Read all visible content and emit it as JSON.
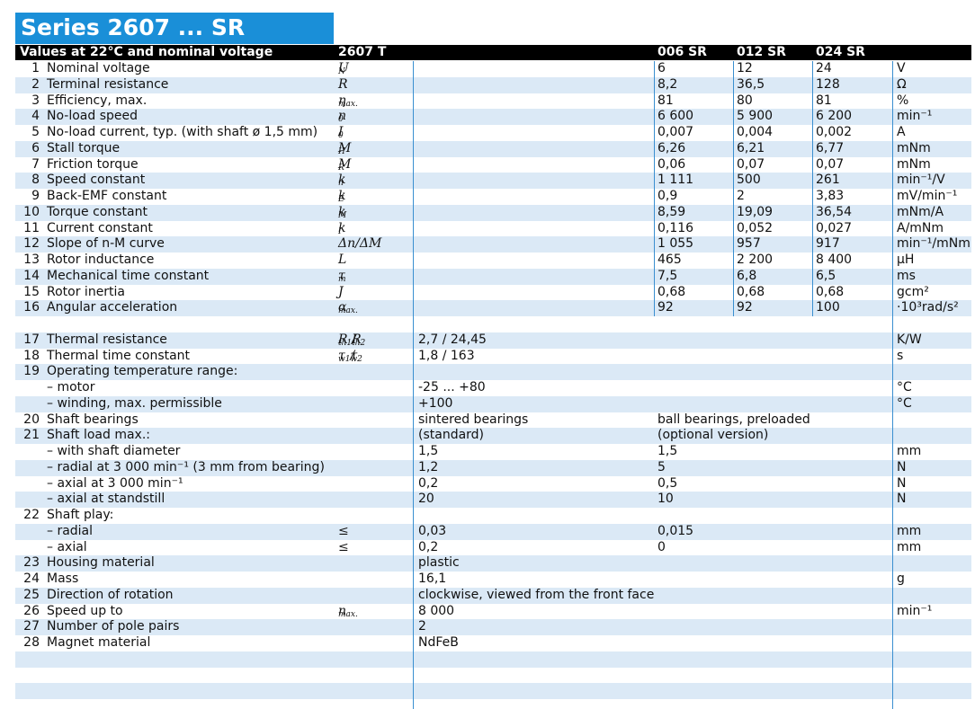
{
  "header": {
    "title": "Series 2607 ... SR",
    "label": "Values at 22°C and nominal voltage",
    "type": "2607 T",
    "columns": [
      "006 SR",
      "012 SR",
      "024 SR"
    ]
  },
  "sections": [
    {
      "rows": [
        {
          "no": 1,
          "label": "Nominal voltage",
          "symbol": [
            {
              "text": "U",
              "sub": "N"
            }
          ],
          "values": [
            "6",
            "12",
            "24"
          ],
          "unit": "V"
        },
        {
          "no": 2,
          "label": "Terminal resistance",
          "symbol": [
            {
              "text": "R"
            }
          ],
          "values": [
            "8,2",
            "36,5",
            "128"
          ],
          "unit": "Ω"
        },
        {
          "no": 3,
          "label": "Efficiency, max.",
          "symbol": [
            {
              "text": "η",
              "sub": "max."
            }
          ],
          "values": [
            "81",
            "80",
            "81"
          ],
          "unit": "%"
        },
        {
          "no": 4,
          "label": "No-load speed",
          "symbol": [
            {
              "text": "n",
              "sub": "0"
            }
          ],
          "values": [
            "6 600",
            "5 900",
            "6 200"
          ],
          "unit": "min⁻¹"
        },
        {
          "no": 5,
          "label": "No-load current, typ. (with shaft ø 1,5 mm)",
          "symbol": [
            {
              "text": "I",
              "sub": "0"
            }
          ],
          "values": [
            "0,007",
            "0,004",
            "0,002"
          ],
          "unit": "A"
        },
        {
          "no": 6,
          "label": "Stall torque",
          "symbol": [
            {
              "text": "M",
              "sub": "H"
            }
          ],
          "values": [
            "6,26",
            "6,21",
            "6,77"
          ],
          "unit": "mNm"
        },
        {
          "no": 7,
          "label": "Friction torque",
          "symbol": [
            {
              "text": "M",
              "sub": "R"
            }
          ],
          "values": [
            "0,06",
            "0,07",
            "0,07"
          ],
          "unit": "mNm"
        },
        {
          "no": 8,
          "label": "Speed constant",
          "symbol": [
            {
              "text": "k",
              "sub": "n"
            }
          ],
          "values": [
            "1 111",
            "500",
            "261"
          ],
          "unit": "min⁻¹/V"
        },
        {
          "no": 9,
          "label": "Back-EMF constant",
          "symbol": [
            {
              "text": "k",
              "sub": "E"
            }
          ],
          "values": [
            "0,9",
            "2",
            "3,83"
          ],
          "unit": "mV/min⁻¹"
        },
        {
          "no": 10,
          "label": "Torque constant",
          "symbol": [
            {
              "text": "k",
              "sub": "M"
            }
          ],
          "values": [
            "8,59",
            "19,09",
            "36,54"
          ],
          "unit": "mNm/A"
        },
        {
          "no": 11,
          "label": "Current constant",
          "symbol": [
            {
              "text": "k",
              "sub": "I"
            }
          ],
          "values": [
            "0,116",
            "0,052",
            "0,027"
          ],
          "unit": "A/mNm"
        },
        {
          "no": 12,
          "label": "Slope of n-M curve",
          "symbol": [
            {
              "text": "Δn/ΔM"
            }
          ],
          "values": [
            "1 055",
            "957",
            "917"
          ],
          "unit": "min⁻¹/mNm"
        },
        {
          "no": 13,
          "label": "Rotor inductance",
          "symbol": [
            {
              "text": "L"
            }
          ],
          "values": [
            "465",
            "2 200",
            "8 400"
          ],
          "unit": "µH"
        },
        {
          "no": 14,
          "label": "Mechanical time constant",
          "symbol": [
            {
              "text": "τ",
              "sub": "m"
            }
          ],
          "values": [
            "7,5",
            "6,8",
            "6,5"
          ],
          "unit": "ms"
        },
        {
          "no": 15,
          "label": "Rotor inertia",
          "symbol": [
            {
              "text": "J"
            }
          ],
          "values": [
            "0,68",
            "0,68",
            "0,68"
          ],
          "unit": "gcm²"
        },
        {
          "no": 16,
          "label": "Angular acceleration",
          "symbol": [
            {
              "text": "α",
              "sub": "max."
            }
          ],
          "values": [
            "92",
            "92",
            "100"
          ],
          "unit": "·10³rad/s²"
        }
      ]
    },
    {
      "rows": [
        {
          "no": 17,
          "label": "Thermal resistance",
          "symbol": [
            {
              "text": "R",
              "sub": "th1"
            },
            {
              "text": " / "
            },
            {
              "text": "R",
              "sub": "th2"
            }
          ],
          "common": "2,7 / 24,45",
          "unit": "K/W"
        },
        {
          "no": 18,
          "label": "Thermal time constant",
          "symbol": [
            {
              "text": "τ",
              "sub": "w1"
            },
            {
              "text": " / "
            },
            {
              "text": "τ",
              "sub": "w2"
            }
          ],
          "common": "1,8 / 163",
          "unit": "s"
        },
        {
          "no": 19,
          "label": "Operating temperature range:"
        },
        {
          "label": "– motor",
          "common": "-25 ... +80",
          "unit": "°C"
        },
        {
          "label": "– winding, max. permissible",
          "common": "+100",
          "unit": "°C"
        },
        {
          "no": 20,
          "label": "Shaft bearings",
          "common": "sintered bearings",
          "optional": "ball bearings, preloaded"
        },
        {
          "no": 21,
          "label": "Shaft load max.:",
          "common": "(standard)",
          "optional": "(optional version)"
        },
        {
          "label": "– with shaft diameter",
          "common": "1,5",
          "optional": "1,5",
          "unit": "mm"
        },
        {
          "label": "– radial at 3 000 min⁻¹ (3 mm from bearing)",
          "common": "1,2",
          "optional": "5",
          "unit": "N"
        },
        {
          "label": "– axial at 3 000 min⁻¹",
          "common": "0,2",
          "optional": "0,5",
          "unit": "N"
        },
        {
          "label": "– axial at standstill",
          "common": "20",
          "optional": "10",
          "unit": "N"
        },
        {
          "no": 22,
          "label": "Shaft play:"
        },
        {
          "label": "– radial",
          "symbol": [
            {
              "text": "≤"
            }
          ],
          "common": "0,03",
          "optional": "0,015",
          "unit": "mm"
        },
        {
          "label": "– axial",
          "symbol": [
            {
              "text": "≤"
            }
          ],
          "common": "0,2",
          "optional": "0",
          "unit": "mm"
        },
        {
          "no": 23,
          "label": "Housing material",
          "common": "plastic"
        },
        {
          "no": 24,
          "label": "Mass",
          "common": "16,1",
          "unit": "g"
        },
        {
          "no": 25,
          "label": "Direction of rotation",
          "common": "clockwise, viewed from the front face"
        },
        {
          "no": 26,
          "label": "Speed up to",
          "symbol": [
            {
              "text": "n",
              "sub": "max."
            }
          ],
          "common": "8 000",
          "unit": "min⁻¹"
        },
        {
          "no": 27,
          "label": "Number of pole pairs",
          "common": "2"
        },
        {
          "no": 28,
          "label": "Magnet material",
          "common": "NdFeB"
        }
      ]
    }
  ]
}
